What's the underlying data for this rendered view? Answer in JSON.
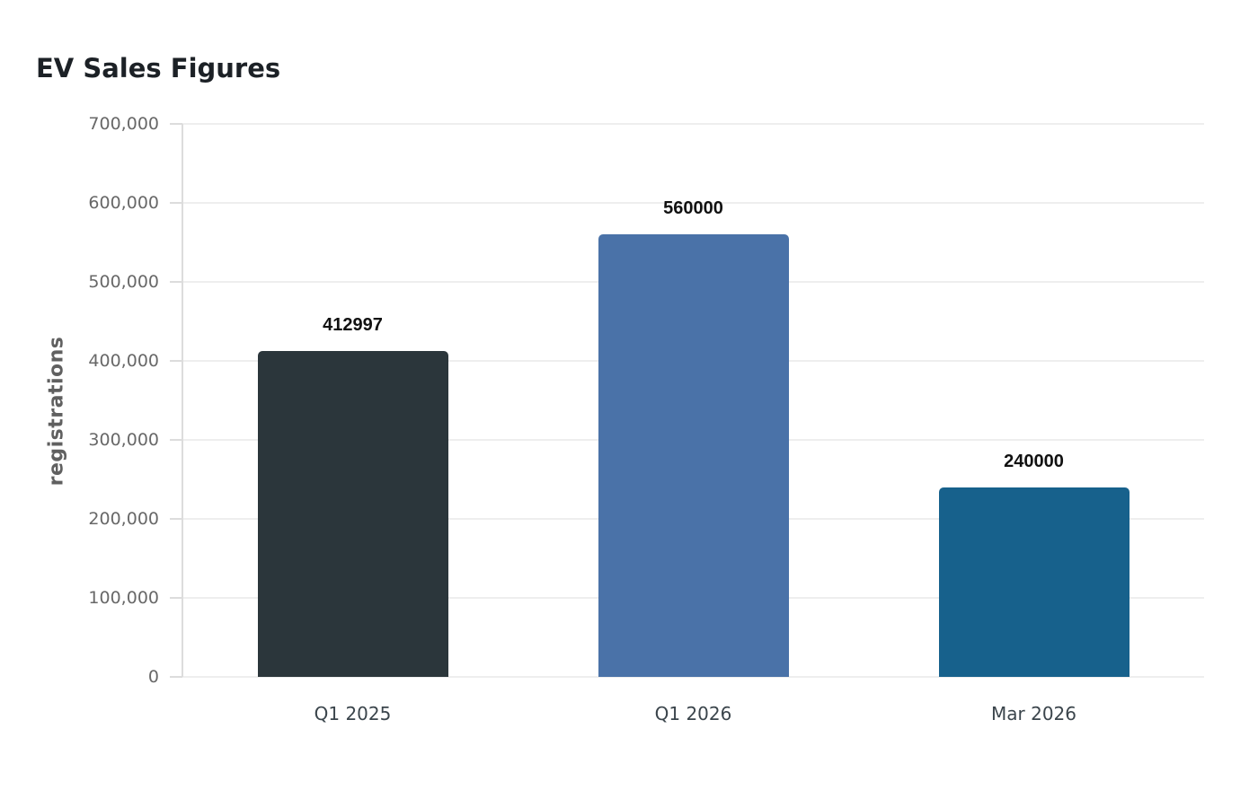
{
  "page": {
    "background_color": "#ffffff"
  },
  "chart_data": {
    "type": "bar",
    "title": "EV Sales Figures",
    "xlabel": "",
    "ylabel": "registrations",
    "categories": [
      "Q1 2025",
      "Q1 2026",
      "Mar 2026"
    ],
    "values": [
      412997,
      560000,
      240000
    ],
    "bar_labels": [
      "412997",
      "560000",
      "240000"
    ],
    "bar_colors": [
      "#2b363b",
      "#4a72a8",
      "#17618c"
    ],
    "ylim": [
      0,
      700000
    ],
    "yticks": [
      {
        "value": 0,
        "label": "0"
      },
      {
        "value": 100000,
        "label": "100,000"
      },
      {
        "value": 200000,
        "label": "200,000"
      },
      {
        "value": 300000,
        "label": "300,000"
      },
      {
        "value": 400000,
        "label": "400,000"
      },
      {
        "value": 500000,
        "label": "500,000"
      },
      {
        "value": 600000,
        "label": "600,000"
      },
      {
        "value": 700000,
        "label": "700,000"
      }
    ],
    "grid": "horizontal",
    "legend_position": "none",
    "style_colors": {
      "gridline": "#eeeeee",
      "axis_line": "#dcdcdc",
      "title_text": "#1c2126",
      "y_tick_text": "#686868",
      "x_tick_text": "#3b454c",
      "y_axis_title_text": "#606060",
      "bar_value_text": "#111111"
    }
  }
}
